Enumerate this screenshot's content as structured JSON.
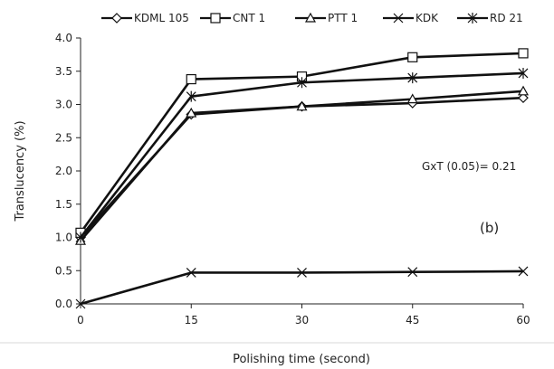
{
  "chart_data": {
    "type": "line",
    "xlabel": "Polishing time (second)",
    "ylabel": "Translucency (%)",
    "x": [
      0,
      15,
      30,
      45,
      60
    ],
    "x_ticks": [
      "0",
      "15",
      "30",
      "45",
      "60"
    ],
    "ylim": [
      0,
      4.0
    ],
    "y_ticks": [
      "0.0",
      "0.5",
      "1.0",
      "1.5",
      "2.0",
      "2.5",
      "3.0",
      "3.5",
      "4.0"
    ],
    "grid": false,
    "legend_position": "top",
    "series": [
      {
        "name": "KDML 105",
        "marker": "diamond",
        "values": [
          1.0,
          2.85,
          2.97,
          3.02,
          3.1
        ]
      },
      {
        "name": "CNT 1",
        "marker": "square",
        "values": [
          1.07,
          3.38,
          3.42,
          3.71,
          3.77
        ]
      },
      {
        "name": "PTT 1",
        "marker": "triangle",
        "values": [
          0.95,
          2.87,
          2.97,
          3.08,
          3.2
        ]
      },
      {
        "name": "KDK",
        "marker": "x",
        "values": [
          0.0,
          0.47,
          0.47,
          0.48,
          0.49
        ]
      },
      {
        "name": "RD 21",
        "marker": "asterisk",
        "values": [
          1.0,
          3.12,
          3.33,
          3.4,
          3.47
        ]
      }
    ],
    "annotations": {
      "gxt": "GxT (0.05)= 0.21",
      "panel": "(b)"
    }
  }
}
